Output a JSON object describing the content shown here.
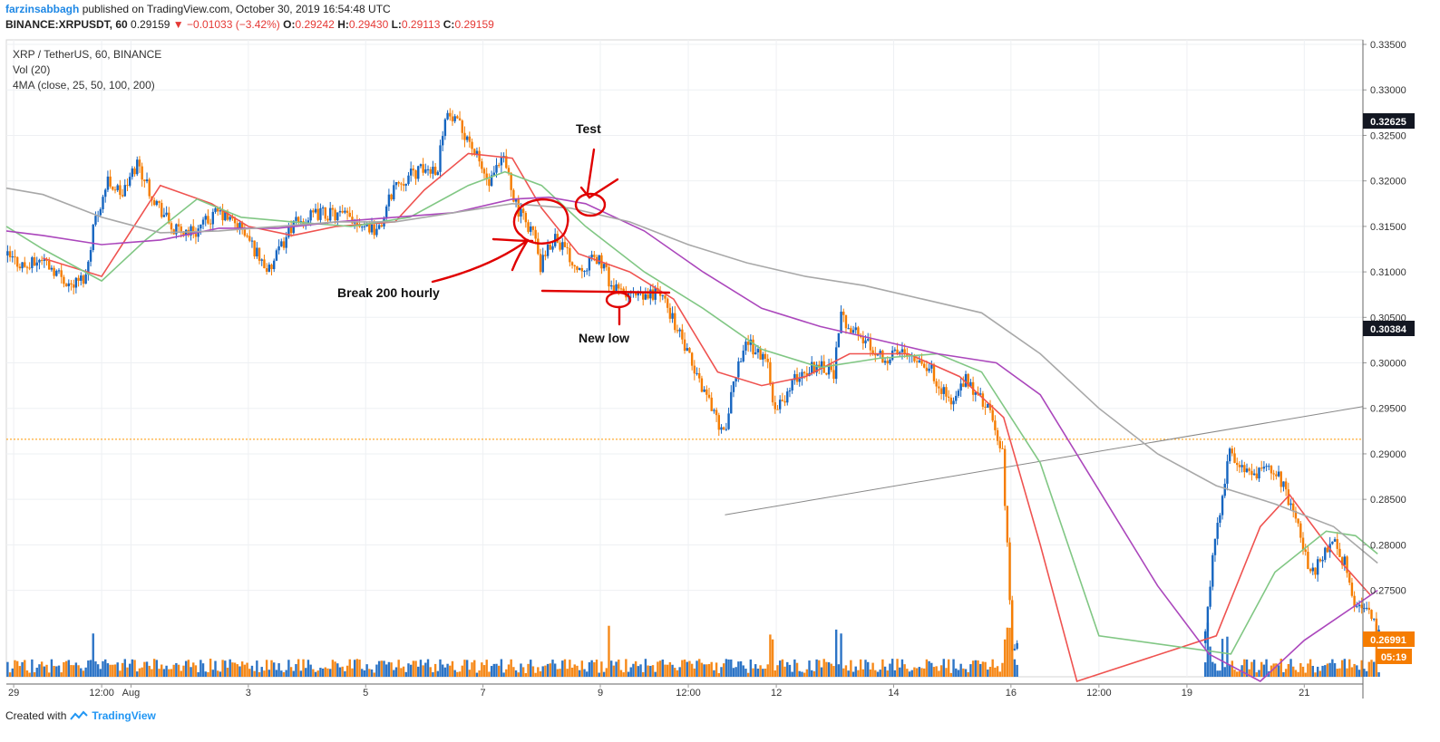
{
  "header": {
    "author": "farzinsabbagh",
    "published_text": "published on TradingView.com, October 30, 2019 16:54:48 UTC",
    "symbol": "BINANCE:XRPUSDT, 60",
    "last": "0.29159",
    "change": "−0.01033 (−3.42%)",
    "o_label": "O:",
    "o_value": "0.29242",
    "h_label": "H:",
    "h_value": "0.29430",
    "l_label": "L:",
    "l_value": "0.29113",
    "c_label": "C:",
    "c_value": "0.29159"
  },
  "legend": {
    "title": "XRP / TetherUS, 60, BINANCE",
    "vol": "Vol (20)",
    "ma": "4MA (close, 25, 50, 100, 200)"
  },
  "footer": {
    "created": "Created with",
    "brand": "TradingView"
  },
  "colors": {
    "up": "#1565c0",
    "down": "#f57c00",
    "ma25": "#ef5350",
    "ma50": "#81c784",
    "ma100": "#ab47bc",
    "ma200": "#a8a8a8",
    "annotation": "#e00000",
    "trendline": "#888888"
  },
  "annotations": {
    "test": "Test",
    "break": "Break 200 hourly",
    "new_low": "New low"
  },
  "price_tags": {
    "upper": "0.32625",
    "middle": "0.30384",
    "last": "0.26991",
    "countdown": "05:19"
  },
  "chart_data": {
    "type": "candlestick",
    "title": "XRP / TetherUS, 60, BINANCE",
    "y_axis_ticks": [
      "0.33500",
      "0.33000",
      "0.32500",
      "0.32000",
      "0.31500",
      "0.31000",
      "0.30500",
      "0.30000",
      "0.29500",
      "0.29000",
      "0.28500",
      "0.28000",
      "0.27500"
    ],
    "ylim": [
      0.2655,
      0.3355
    ],
    "x_axis_ticks": [
      "29",
      "12:00",
      "Aug",
      "3",
      "5",
      "7",
      "9",
      "12:00",
      "12",
      "14",
      "16",
      "12:00",
      "19",
      "21"
    ],
    "horizontal_line": 0.2916,
    "trendline": {
      "from": [
        "Aug 10 03:00",
        0.2833
      ],
      "to": [
        "Aug 21 00:00",
        0.2952
      ]
    },
    "price_path": [
      {
        "t": "Jul 28 21:00",
        "p": 0.3118
      },
      {
        "t": "Jul 29 06:00",
        "p": 0.3105
      },
      {
        "t": "Jul 29 12:00",
        "p": 0.3115
      },
      {
        "t": "Jul 30 00:00",
        "p": 0.3085
      },
      {
        "t": "Jul 30 06:00",
        "p": 0.3095
      },
      {
        "t": "Jul 30 09:00",
        "p": 0.315
      },
      {
        "t": "Jul 30 15:00",
        "p": 0.32
      },
      {
        "t": "Jul 30 21:00",
        "p": 0.3185
      },
      {
        "t": "Jul 31 03:00",
        "p": 0.322
      },
      {
        "t": "Jul 31 09:00",
        "p": 0.3185
      },
      {
        "t": "Jul 31 18:00",
        "p": 0.3145
      },
      {
        "t": "Aug 1 03:00",
        "p": 0.3145
      },
      {
        "t": "Aug 1 12:00",
        "p": 0.3165
      },
      {
        "t": "Aug 1 21:00",
        "p": 0.315
      },
      {
        "t": "Aug 2 09:00",
        "p": 0.31
      },
      {
        "t": "Aug 2 18:00",
        "p": 0.315
      },
      {
        "t": "Aug 3 06:00",
        "p": 0.3165
      },
      {
        "t": "Aug 3 18:00",
        "p": 0.316
      },
      {
        "t": "Aug 4 06:00",
        "p": 0.3145
      },
      {
        "t": "Aug 4 12:00",
        "p": 0.3195
      },
      {
        "t": "Aug 4 21:00",
        "p": 0.321
      },
      {
        "t": "Aug 5 06:00",
        "p": 0.3215
      },
      {
        "t": "Aug 5 09:00",
        "p": 0.3275
      },
      {
        "t": "Aug 5 18:00",
        "p": 0.325
      },
      {
        "t": "Aug 6 03:00",
        "p": 0.3195
      },
      {
        "t": "Aug 6 09:00",
        "p": 0.3225
      },
      {
        "t": "Aug 6 15:00",
        "p": 0.3165
      },
      {
        "t": "Aug 6 21:00",
        "p": 0.3145
      },
      {
        "t": "Aug 7 00:00",
        "p": 0.3105
      },
      {
        "t": "Aug 7 06:00",
        "p": 0.314
      },
      {
        "t": "Aug 7 15:00",
        "p": 0.3105
      },
      {
        "t": "Aug 8 00:00",
        "p": 0.3115
      },
      {
        "t": "Aug 8 06:00",
        "p": 0.308
      },
      {
        "t": "Aug 8 18:00",
        "p": 0.307
      },
      {
        "t": "Aug 9 00:00",
        "p": 0.308
      },
      {
        "t": "Aug 9 06:00",
        "p": 0.305
      },
      {
        "t": "Aug 9 15:00",
        "p": 0.299
      },
      {
        "t": "Aug 9 21:00",
        "p": 0.296
      },
      {
        "t": "Aug 10 03:00",
        "p": 0.292
      },
      {
        "t": "Aug 10 09:00",
        "p": 0.3
      },
      {
        "t": "Aug 10 12:00",
        "p": 0.3025
      },
      {
        "t": "Aug 10 21:00",
        "p": 0.3
      },
      {
        "t": "Aug 11 00:00",
        "p": 0.2945
      },
      {
        "t": "Aug 11 09:00",
        "p": 0.2985
      },
      {
        "t": "Aug 11 18:00",
        "p": 0.3
      },
      {
        "t": "Aug 12 00:00",
        "p": 0.299
      },
      {
        "t": "Aug 12 03:00",
        "p": 0.305
      },
      {
        "t": "Aug 12 12:00",
        "p": 0.3025
      },
      {
        "t": "Aug 12 21:00",
        "p": 0.3005
      },
      {
        "t": "Aug 13 06:00",
        "p": 0.3015
      },
      {
        "t": "Aug 13 15:00",
        "p": 0.2995
      },
      {
        "t": "Aug 14 00:00",
        "p": 0.2955
      },
      {
        "t": "Aug 14 06:00",
        "p": 0.298
      },
      {
        "t": "Aug 14 15:00",
        "p": 0.295
      },
      {
        "t": "Aug 14 21:00",
        "p": 0.29
      },
      {
        "t": "Aug 15 01:00",
        "p": 0.269
      },
      {
        "t": "Aug 18 08:00",
        "p": 0.27
      },
      {
        "t": "Aug 18 12:00",
        "p": 0.281
      },
      {
        "t": "Aug 18 18:00",
        "p": 0.29
      },
      {
        "t": "Aug 19 03:00",
        "p": 0.2875
      },
      {
        "t": "Aug 19 12:00",
        "p": 0.2885
      },
      {
        "t": "Aug 19 21:00",
        "p": 0.2835
      },
      {
        "t": "Aug 20 03:00",
        "p": 0.2765
      },
      {
        "t": "Aug 20 12:00",
        "p": 0.2805
      },
      {
        "t": "Aug 20 18:00",
        "p": 0.2775
      },
      {
        "t": "Aug 20 21:00",
        "p": 0.273
      },
      {
        "t": "Aug 21 03:00",
        "p": 0.2735
      },
      {
        "t": "Aug 21 06:00",
        "p": 0.2699
      }
    ],
    "series": [
      {
        "name": "MA 25",
        "values": [
          {
            "t": "Jul 29 12:00",
            "p": 0.3115
          },
          {
            "t": "Jul 30 12:00",
            "p": 0.3095
          },
          {
            "t": "Jul 31 12:00",
            "p": 0.3195
          },
          {
            "t": "Aug 1 09:00",
            "p": 0.3175
          },
          {
            "t": "Aug 2 00:00",
            "p": 0.315
          },
          {
            "t": "Aug 2 18:00",
            "p": 0.314
          },
          {
            "t": "Aug 3 12:00",
            "p": 0.315
          },
          {
            "t": "Aug 4 12:00",
            "p": 0.3155
          },
          {
            "t": "Aug 5 00:00",
            "p": 0.319
          },
          {
            "t": "Aug 5 18:00",
            "p": 0.323
          },
          {
            "t": "Aug 6 12:00",
            "p": 0.3225
          },
          {
            "t": "Aug 7 00:00",
            "p": 0.317
          },
          {
            "t": "Aug 7 15:00",
            "p": 0.312
          },
          {
            "t": "Aug 8 12:00",
            "p": 0.31
          },
          {
            "t": "Aug 9 06:00",
            "p": 0.307
          },
          {
            "t": "Aug 10 00:00",
            "p": 0.299
          },
          {
            "t": "Aug 10 18:00",
            "p": 0.2975
          },
          {
            "t": "Aug 11 12:00",
            "p": 0.2985
          },
          {
            "t": "Aug 12 06:00",
            "p": 0.301
          },
          {
            "t": "Aug 13 06:00",
            "p": 0.301
          },
          {
            "t": "Aug 14 03:00",
            "p": 0.2985
          },
          {
            "t": "Aug 14 21:00",
            "p": 0.294
          },
          {
            "t": "Aug 15 12:00",
            "p": 0.28
          },
          {
            "t": "Aug 16 03:00",
            "p": 0.265
          },
          {
            "t": "Aug 18 12:00",
            "p": 0.27
          },
          {
            "t": "Aug 19 06:00",
            "p": 0.282
          },
          {
            "t": "Aug 19 18:00",
            "p": 0.2855
          },
          {
            "t": "Aug 20 12:00",
            "p": 0.279
          },
          {
            "t": "Aug 21 03:00",
            "p": 0.2745
          }
        ]
      },
      {
        "name": "MA 50",
        "values": [
          {
            "t": "Jul 28 21:00",
            "p": 0.315
          },
          {
            "t": "Jul 29 12:00",
            "p": 0.3125
          },
          {
            "t": "Jul 30 12:00",
            "p": 0.309
          },
          {
            "t": "Jul 31 06:00",
            "p": 0.3135
          },
          {
            "t": "Aug 1 03:00",
            "p": 0.318
          },
          {
            "t": "Aug 1 21:00",
            "p": 0.316
          },
          {
            "t": "Aug 2 18:00",
            "p": 0.3155
          },
          {
            "t": "Aug 3 18:00",
            "p": 0.315
          },
          {
            "t": "Aug 4 18:00",
            "p": 0.316
          },
          {
            "t": "Aug 5 18:00",
            "p": 0.3195
          },
          {
            "t": "Aug 6 09:00",
            "p": 0.321
          },
          {
            "t": "Aug 7 00:00",
            "p": 0.3195
          },
          {
            "t": "Aug 7 18:00",
            "p": 0.315
          },
          {
            "t": "Aug 8 18:00",
            "p": 0.31
          },
          {
            "t": "Aug 9 18:00",
            "p": 0.306
          },
          {
            "t": "Aug 10 18:00",
            "p": 0.3015
          },
          {
            "t": "Aug 11 18:00",
            "p": 0.2995
          },
          {
            "t": "Aug 12 18:00",
            "p": 0.3005
          },
          {
            "t": "Aug 13 18:00",
            "p": 0.301
          },
          {
            "t": "Aug 14 12:00",
            "p": 0.299
          },
          {
            "t": "Aug 15 12:00",
            "p": 0.289
          },
          {
            "t": "Aug 16 12:00",
            "p": 0.27
          },
          {
            "t": "Aug 18 18:00",
            "p": 0.268
          },
          {
            "t": "Aug 19 12:00",
            "p": 0.277
          },
          {
            "t": "Aug 20 09:00",
            "p": 0.2815
          },
          {
            "t": "Aug 20 21:00",
            "p": 0.281
          },
          {
            "t": "Aug 21 06:00",
            "p": 0.279
          }
        ]
      },
      {
        "name": "MA 100",
        "values": [
          {
            "t": "Jul 28 21:00",
            "p": 0.3145
          },
          {
            "t": "Jul 29 12:00",
            "p": 0.314
          },
          {
            "t": "Jul 30 12:00",
            "p": 0.313
          },
          {
            "t": "Jul 31 12:00",
            "p": 0.3135
          },
          {
            "t": "Aug 1 12:00",
            "p": 0.3148
          },
          {
            "t": "Aug 2 12:00",
            "p": 0.3148
          },
          {
            "t": "Aug 3 12:00",
            "p": 0.3155
          },
          {
            "t": "Aug 4 12:00",
            "p": 0.316
          },
          {
            "t": "Aug 5 12:00",
            "p": 0.3165
          },
          {
            "t": "Aug 6 12:00",
            "p": 0.318
          },
          {
            "t": "Aug 7 03:00",
            "p": 0.3182
          },
          {
            "t": "Aug 7 18:00",
            "p": 0.3175
          },
          {
            "t": "Aug 8 18:00",
            "p": 0.3145
          },
          {
            "t": "Aug 9 18:00",
            "p": 0.31
          },
          {
            "t": "Aug 10 18:00",
            "p": 0.306
          },
          {
            "t": "Aug 11 18:00",
            "p": 0.304
          },
          {
            "t": "Aug 12 18:00",
            "p": 0.3025
          },
          {
            "t": "Aug 13 18:00",
            "p": 0.301
          },
          {
            "t": "Aug 14 18:00",
            "p": 0.3
          },
          {
            "t": "Aug 15 12:00",
            "p": 0.2965
          },
          {
            "t": "Aug 16 12:00",
            "p": 0.286
          },
          {
            "t": "Aug 17 12:00",
            "p": 0.2755
          },
          {
            "t": "Aug 18 09:00",
            "p": 0.268
          },
          {
            "t": "Aug 19 06:00",
            "p": 0.265
          },
          {
            "t": "Aug 20 00:00",
            "p": 0.2695
          },
          {
            "t": "Aug 21 06:00",
            "p": 0.275
          }
        ]
      },
      {
        "name": "MA 200",
        "values": [
          {
            "t": "Jul 28 21:00",
            "p": 0.3192
          },
          {
            "t": "Jul 29 12:00",
            "p": 0.3185
          },
          {
            "t": "Jul 30 12:00",
            "p": 0.316
          },
          {
            "t": "Jul 31 12:00",
            "p": 0.3143
          },
          {
            "t": "Aug 1 12:00",
            "p": 0.3145
          },
          {
            "t": "Aug 2 12:00",
            "p": 0.315
          },
          {
            "t": "Aug 3 12:00",
            "p": 0.3155
          },
          {
            "t": "Aug 4 12:00",
            "p": 0.3155
          },
          {
            "t": "Aug 5 12:00",
            "p": 0.3165
          },
          {
            "t": "Aug 6 12:00",
            "p": 0.3175
          },
          {
            "t": "Aug 7 12:00",
            "p": 0.317
          },
          {
            "t": "Aug 8 12:00",
            "p": 0.3155
          },
          {
            "t": "Aug 9 12:00",
            "p": 0.313
          },
          {
            "t": "Aug 10 12:00",
            "p": 0.311
          },
          {
            "t": "Aug 11 12:00",
            "p": 0.3095
          },
          {
            "t": "Aug 12 12:00",
            "p": 0.3085
          },
          {
            "t": "Aug 13 12:00",
            "p": 0.307
          },
          {
            "t": "Aug 14 12:00",
            "p": 0.3055
          },
          {
            "t": "Aug 15 12:00",
            "p": 0.301
          },
          {
            "t": "Aug 16 12:00",
            "p": 0.295
          },
          {
            "t": "Aug 17 12:00",
            "p": 0.29
          },
          {
            "t": "Aug 18 12:00",
            "p": 0.2865
          },
          {
            "t": "Aug 19 12:00",
            "p": 0.2845
          },
          {
            "t": "Aug 20 12:00",
            "p": 0.282
          },
          {
            "t": "Aug 21 06:00",
            "p": 0.278
          }
        ]
      }
    ]
  }
}
